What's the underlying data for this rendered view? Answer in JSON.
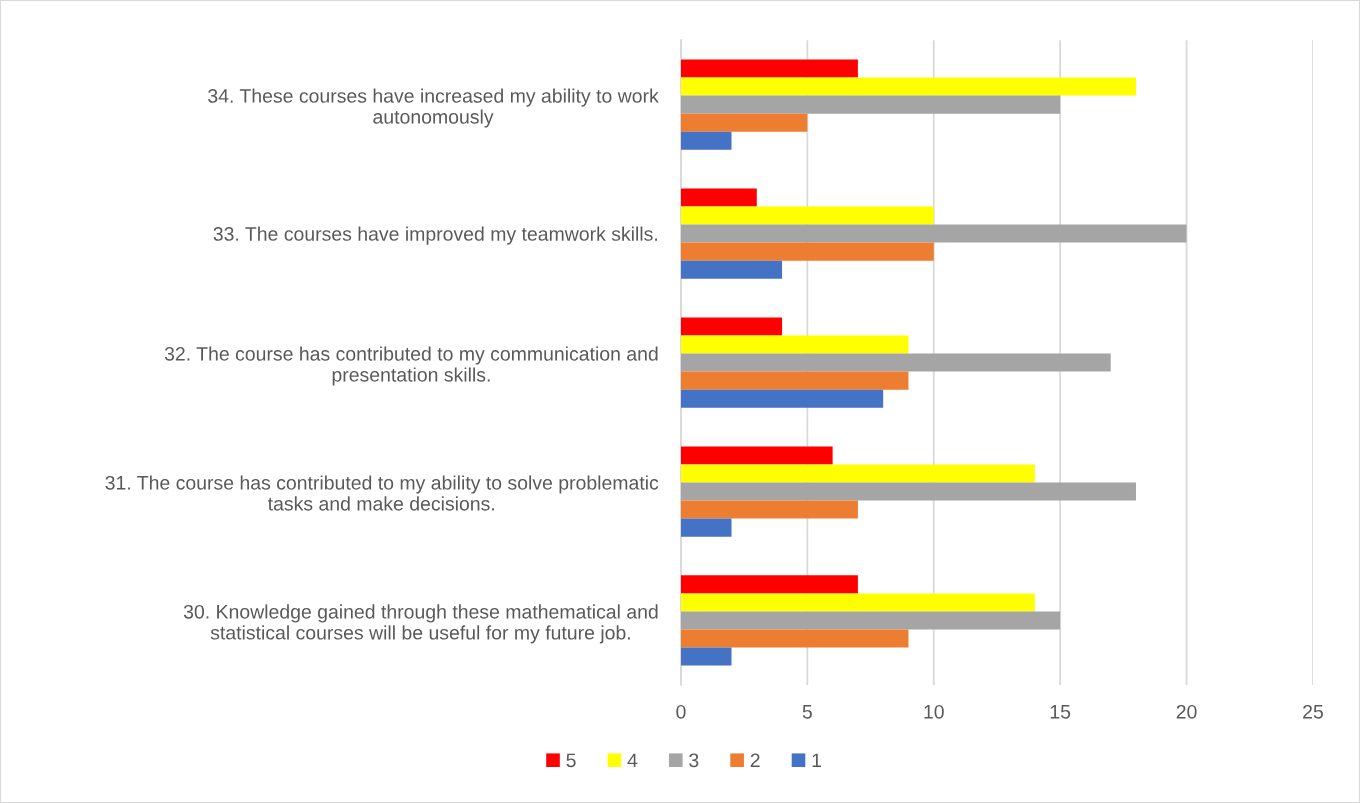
{
  "chart_data": {
    "type": "bar",
    "orientation": "horizontal",
    "categories": [
      "34. These courses have increased my ability to work\nautonomously",
      "33. The courses have improved my teamwork skills.",
      "32. The course has contributed to my communication and\npresentation skills.",
      "31. The course has contributed to my ability to solve problematic\ntasks and make decisions.",
      "30. Knowledge gained through these mathematical and\nstatistical courses will be useful for my future job."
    ],
    "series": [
      {
        "name": "5",
        "color": "#ff0000",
        "values": [
          7,
          3,
          4,
          6,
          7
        ]
      },
      {
        "name": "4",
        "color": "#ffff00",
        "values": [
          18,
          10,
          9,
          14,
          14
        ]
      },
      {
        "name": "3",
        "color": "#a5a5a5",
        "values": [
          15,
          20,
          17,
          18,
          15
        ]
      },
      {
        "name": "2",
        "color": "#ed7d31",
        "values": [
          5,
          10,
          9,
          7,
          9
        ]
      },
      {
        "name": "1",
        "color": "#4472c4",
        "values": [
          2,
          4,
          8,
          2,
          2
        ]
      }
    ],
    "xlim": [
      0,
      25
    ],
    "xticks": [
      0,
      5,
      10,
      15,
      20,
      25
    ],
    "grid": "x",
    "legend": "bottom"
  }
}
